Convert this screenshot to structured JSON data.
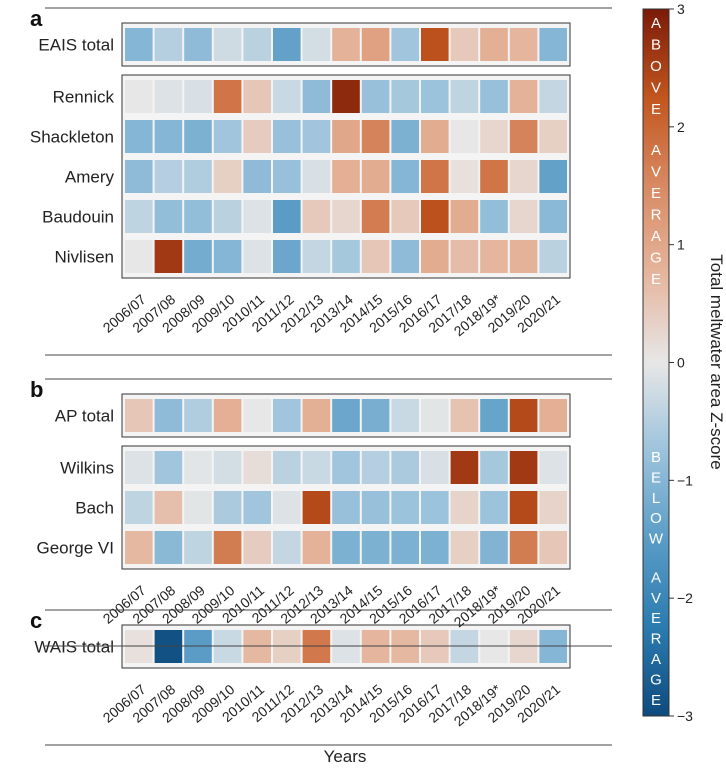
{
  "chart_data": {
    "type": "heatmap",
    "years": [
      "2006/07",
      "2007/08",
      "2008/09",
      "2009/10",
      "2010/11",
      "2011/12",
      "2012/13",
      "2013/14",
      "2014/15",
      "2015/16",
      "2016/17",
      "2017/18",
      "2018/19*",
      "2019/20",
      "2020/21"
    ],
    "x_axis_title": "Years",
    "colorbar": {
      "title": "Total meltwater area Z-score",
      "min": -3,
      "max": 3,
      "ticks": [
        "3",
        "2",
        "1",
        "0",
        "−1",
        "−2",
        "−3"
      ],
      "tick_values": [
        3,
        2,
        1,
        0,
        -1,
        -2,
        -3
      ],
      "above_label": "ABOVE AVERAGE",
      "below_label": "BELOW AVERAGE",
      "colors": [
        "#0e4a7d",
        "#2b7bb0",
        "#5a9cc6",
        "#9cc3dc",
        "#e7e7e7",
        "#e5b59d",
        "#d88a63",
        "#c2551e",
        "#7a1a08"
      ]
    },
    "panels": [
      {
        "label": "a",
        "groups": [
          [
            {
              "name": "EAIS total",
              "values": [
                -1.0,
                -0.5,
                -0.9,
                -0.25,
                -0.45,
                -1.4,
                -0.2,
                0.8,
                1.1,
                -0.7,
                2.3,
                0.45,
                0.85,
                0.75,
                -1.0
              ]
            }
          ],
          [
            {
              "name": "Rennick",
              "values": [
                0.0,
                -0.1,
                -0.15,
                1.8,
                0.5,
                -0.3,
                -0.9,
                2.8,
                -0.8,
                -0.65,
                -0.75,
                -0.4,
                -0.8,
                0.8,
                -0.35
              ]
            },
            {
              "name": "Shackleton",
              "values": [
                -1.0,
                -1.0,
                -1.1,
                -0.7,
                0.4,
                -0.8,
                -0.7,
                1.0,
                1.6,
                -1.1,
                0.9,
                0.0,
                0.25,
                1.6,
                0.35
              ]
            },
            {
              "name": "Amery",
              "values": [
                -0.9,
                -0.5,
                -0.55,
                0.35,
                -0.9,
                -0.8,
                -0.15,
                0.85,
                0.9,
                -1.0,
                1.8,
                0.1,
                1.8,
                0.25,
                -1.4
              ]
            },
            {
              "name": "Baudouin",
              "values": [
                -0.4,
                -0.85,
                -0.85,
                -0.45,
                -0.1,
                -1.5,
                0.45,
                0.25,
                1.7,
                0.45,
                2.3,
                0.9,
                -0.85,
                0.25,
                -0.95
              ]
            },
            {
              "name": "Nivlisen",
              "values": [
                0.0,
                2.6,
                -1.2,
                -1.0,
                -0.1,
                -1.3,
                -0.35,
                -0.65,
                0.5,
                -0.9,
                0.9,
                0.65,
                0.75,
                0.8,
                -0.45
              ]
            }
          ]
        ]
      },
      {
        "label": "b",
        "groups": [
          [
            {
              "name": "AP total",
              "values": [
                0.5,
                -0.9,
                -0.55,
                0.85,
                0.0,
                -0.7,
                0.85,
                -1.3,
                -1.15,
                -0.3,
                -0.05,
                0.55,
                -1.35,
                2.4,
                0.85
              ]
            }
          ],
          [
            {
              "name": "Wilkins",
              "values": [
                -0.1,
                -0.7,
                -0.05,
                -0.2,
                0.15,
                -0.45,
                -0.3,
                -0.7,
                -0.5,
                -0.6,
                -0.15,
                2.6,
                -0.65,
                2.6,
                -0.1
              ]
            },
            {
              "name": "Bach",
              "values": [
                -0.4,
                0.6,
                -0.05,
                -0.6,
                -0.7,
                -0.1,
                2.4,
                -0.8,
                -0.8,
                -0.75,
                -0.75,
                0.3,
                -0.75,
                2.4,
                0.3
              ]
            },
            {
              "name": "George VI",
              "values": [
                0.7,
                -0.95,
                -0.4,
                1.7,
                0.4,
                -0.35,
                0.8,
                -1.1,
                -1.1,
                -1.1,
                -1.1,
                0.35,
                -1.05,
                1.7,
                0.5
              ]
            }
          ]
        ]
      },
      {
        "label": "c",
        "groups": [
          [
            {
              "name": "WAIS total",
              "values": [
                0.1,
                -2.9,
                -1.5,
                -0.3,
                0.7,
                0.35,
                1.75,
                -0.1,
                0.75,
                0.7,
                0.45,
                -0.35,
                0.0,
                0.25,
                -1.0
              ]
            }
          ]
        ]
      }
    ]
  }
}
